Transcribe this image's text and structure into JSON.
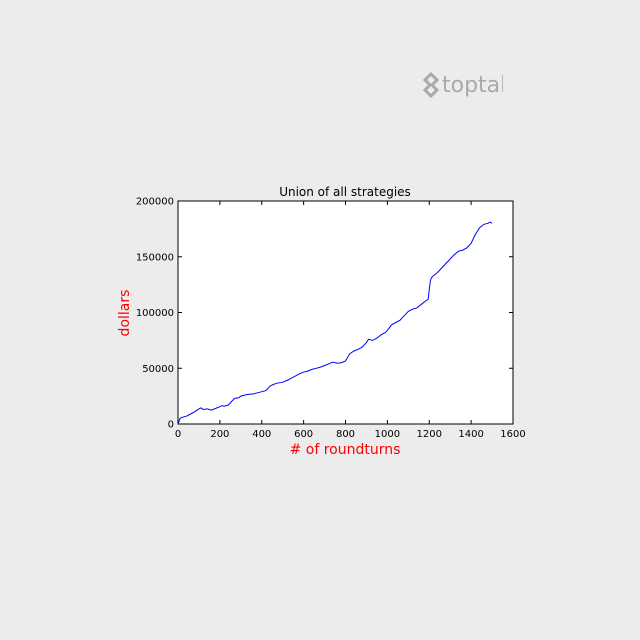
{
  "logo": {
    "text": "toptal",
    "color": "#a9a9a9"
  },
  "chart_data": {
    "type": "line",
    "title": "Union of all strategies",
    "xlabel": "# of roundturns",
    "ylabel": "dollars",
    "xlim": [
      0,
      1600
    ],
    "ylim": [
      0,
      200000
    ],
    "x_ticks": [
      0,
      200,
      400,
      600,
      800,
      1000,
      1200,
      1400,
      1600
    ],
    "y_ticks": [
      0,
      50000,
      100000,
      150000,
      200000
    ],
    "x_tick_labels": [
      "0",
      "200",
      "400",
      "600",
      "800",
      "1000",
      "1200",
      "1400",
      "1600"
    ],
    "y_tick_labels": [
      "0",
      "50000",
      "100000",
      "150000",
      "200000"
    ],
    "grid": false,
    "label_color": "#ff0000",
    "series": [
      {
        "color": "#0000ff",
        "x": [
          0,
          10,
          20,
          40,
          60,
          80,
          100,
          110,
          120,
          140,
          160,
          180,
          200,
          210,
          220,
          240,
          260,
          270,
          290,
          300,
          330,
          360,
          380,
          400,
          420,
          440,
          450,
          470,
          500,
          520,
          540,
          560,
          580,
          600,
          620,
          640,
          660,
          680,
          700,
          720,
          740,
          760,
          780,
          800,
          820,
          840,
          860,
          880,
          900,
          910,
          930,
          950,
          970,
          990,
          1000,
          1020,
          1040,
          1060,
          1080,
          1100,
          1120,
          1140,
          1160,
          1180,
          1195,
          1200,
          1205,
          1210,
          1220,
          1240,
          1260,
          1280,
          1300,
          1320,
          1340,
          1360,
          1380,
          1400,
          1420,
          1440,
          1460,
          1480,
          1490,
          1500
        ],
        "y": [
          0,
          5000,
          6000,
          7000,
          9000,
          11000,
          13500,
          14500,
          13000,
          13500,
          12500,
          14000,
          15500,
          16500,
          16000,
          17000,
          21000,
          23000,
          23500,
          25000,
          26500,
          27000,
          28000,
          29000,
          30000,
          34000,
          35000,
          36500,
          37500,
          39000,
          41000,
          43000,
          45000,
          46500,
          47500,
          49000,
          50000,
          51000,
          52500,
          54000,
          55500,
          54500,
          55000,
          56500,
          63000,
          65500,
          67000,
          69000,
          73000,
          76000,
          75000,
          77000,
          80000,
          82000,
          84000,
          89000,
          91000,
          93000,
          97000,
          101000,
          103000,
          104000,
          107000,
          110000,
          112000,
          121000,
          128000,
          131000,
          133000,
          136000,
          140000,
          144000,
          148000,
          152000,
          155000,
          156000,
          158000,
          162000,
          170000,
          176000,
          179000,
          180000,
          181000,
          180000
        ]
      }
    ]
  }
}
